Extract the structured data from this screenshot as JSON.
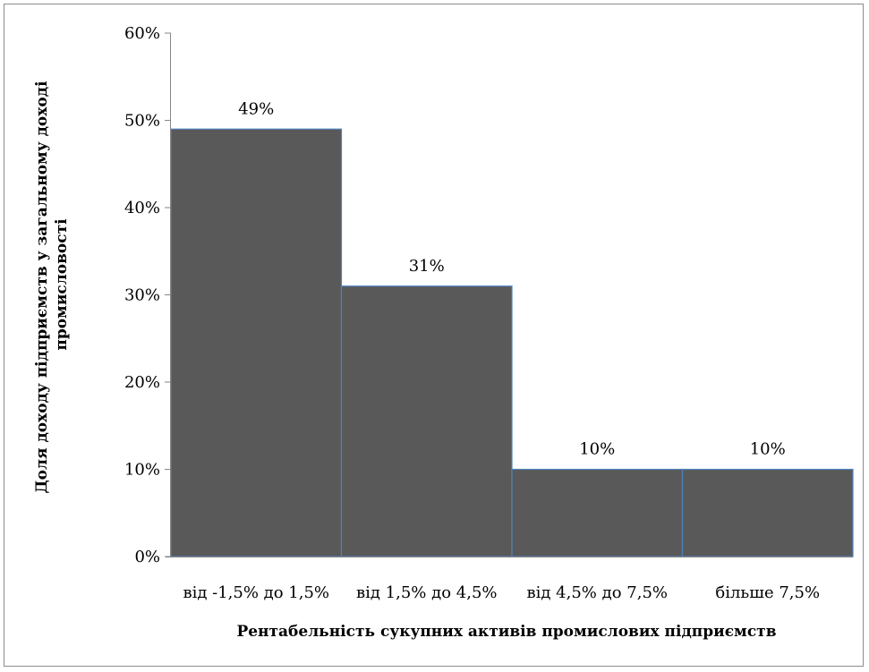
{
  "chart_data": {
    "type": "bar",
    "categories": [
      "від -1,5% до 1,5%",
      "від 1,5% до 4,5%",
      "від 4,5% до 7,5%",
      "більше 7,5%"
    ],
    "values": [
      49,
      31,
      10,
      10
    ],
    "data_labels": [
      "49%",
      "31%",
      "10%",
      "10%"
    ],
    "y_ticks": [
      "0%",
      "10%",
      "20%",
      "30%",
      "40%",
      "50%",
      "60%"
    ],
    "ylim": [
      0,
      60
    ],
    "xlabel": "Рентабельність сукупних активів промислових підприємств",
    "ylabel_lines": [
      "Доля доходу підприємств у загальному доході",
      "промисловості"
    ],
    "bar_color": "#595959",
    "bar_edge_color": "#4f81bd",
    "grid": false
  }
}
